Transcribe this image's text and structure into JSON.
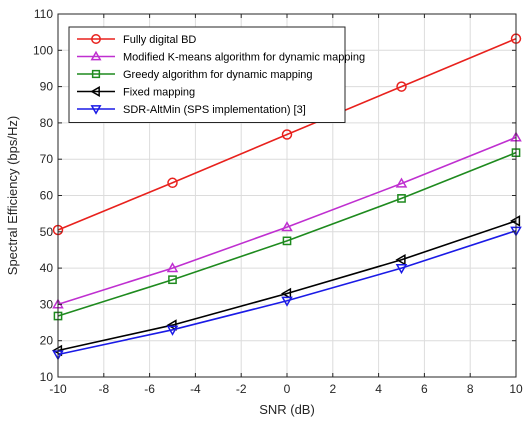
{
  "chart_data": {
    "type": "line",
    "title": "",
    "xlabel": "SNR (dB)",
    "ylabel": "Spectral Efficiency (bps/Hz)",
    "x": [
      -10,
      -5,
      0,
      5,
      10
    ],
    "xlim": [
      -10,
      10
    ],
    "ylim": [
      10,
      110
    ],
    "xticks": [
      "-10",
      "-8",
      "-6",
      "-4",
      "-2",
      "0",
      "2",
      "4",
      "6",
      "8",
      "10"
    ],
    "yticks": [
      "10",
      "20",
      "30",
      "40",
      "50",
      "60",
      "70",
      "80",
      "90",
      "100",
      "110"
    ],
    "grid": true,
    "legend_position": "top-left",
    "series": [
      {
        "name": "Fully digital BD",
        "color": "#e8211d",
        "marker": "circle",
        "values": [
          50.5,
          63.5,
          76.8,
          90.0,
          103.2
        ]
      },
      {
        "name": "Modified K-means algorithm for dynamic mapping",
        "color": "#bf2fd0",
        "marker": "triangle-up",
        "values": [
          30.0,
          40.0,
          51.3,
          63.3,
          76.0
        ]
      },
      {
        "name": "Greedy algorithm for dynamic mapping",
        "color": "#1e8a1e",
        "marker": "square",
        "values": [
          26.8,
          36.8,
          47.5,
          59.2,
          71.8
        ]
      },
      {
        "name": "Fixed mapping",
        "color": "#000000",
        "marker": "triangle-left",
        "values": [
          17.3,
          24.3,
          33.0,
          42.3,
          53.0
        ]
      },
      {
        "name": "SDR-AltMin (SPS implementation) [3]",
        "color": "#1a1ae6",
        "marker": "triangle-down",
        "values": [
          16.2,
          23.0,
          31.0,
          40.0,
          50.3
        ]
      }
    ]
  }
}
